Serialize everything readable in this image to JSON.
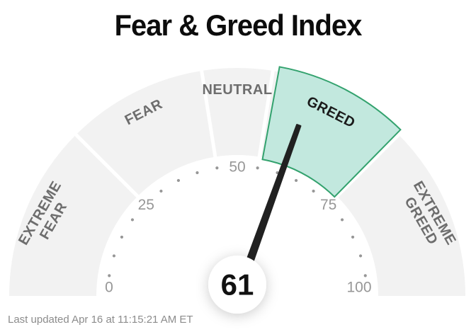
{
  "title": "Fear & Greed Index",
  "footer": {
    "last_updated": "Last updated Apr 16 at 11:15:21 AM ET"
  },
  "chart_data": {
    "type": "gauge",
    "title": "Fear & Greed Index",
    "value": 61,
    "value_label": "61",
    "min": 0,
    "max": 100,
    "arc_degrees": 180,
    "major_ticks": [
      0,
      25,
      50,
      75,
      100
    ],
    "minor_tick_step": 5,
    "active_segment": "GREED",
    "segments": [
      {
        "label": "EXTREME FEAR",
        "from": 0,
        "to": 25,
        "active": false
      },
      {
        "label": "FEAR",
        "from": 25,
        "to": 45,
        "active": false
      },
      {
        "label": "NEUTRAL",
        "from": 45,
        "to": 55,
        "active": false
      },
      {
        "label": "GREED",
        "from": 55,
        "to": 75,
        "active": true
      },
      {
        "label": "EXTREME GREED",
        "from": 75,
        "to": 100,
        "active": false
      }
    ],
    "colors": {
      "segment_fill": "#f2f2f2",
      "active_fill": "#c2e8de",
      "active_stroke": "#33a26e",
      "segment_label": "#6d6d6d",
      "active_label": "#1b1b1b",
      "tick": "#979797",
      "needle": "#212121",
      "value": "#111111",
      "gap": "#ffffff"
    }
  }
}
